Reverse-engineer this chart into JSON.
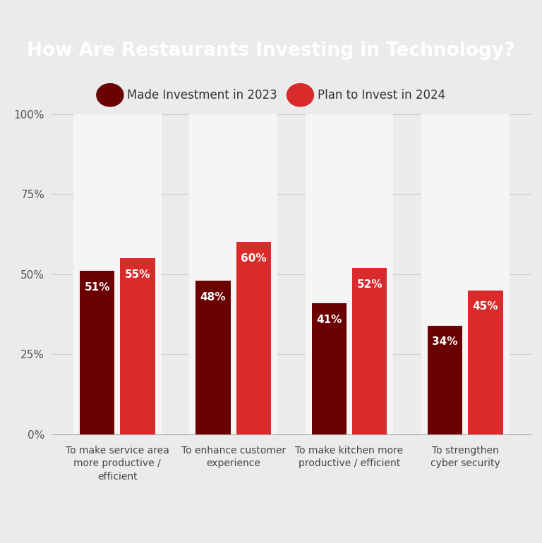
{
  "title": "How Are Restaurants Investing in Technology?",
  "title_bg_color": "#8a6a38",
  "title_text_color": "#ffffff",
  "red_strip_color": "#c0392b",
  "background_color": "#ebebeb",
  "plot_bg_color": "#ebebeb",
  "white_col_color": "#f5f5f5",
  "categories": [
    "To make service area\nmore productive /\nefficient",
    "To enhance customer\nexperience",
    "To make kitchen more\nproductive / efficient",
    "To strengthen\ncyber security"
  ],
  "series": [
    {
      "label": "Made Investment in 2023",
      "values": [
        51,
        48,
        41,
        34
      ],
      "color": "#6b0000"
    },
    {
      "label": "Plan to Invest in 2024",
      "values": [
        55,
        60,
        52,
        45
      ],
      "color": "#d92b2b"
    }
  ],
  "ylim": [
    0,
    100
  ],
  "yticks": [
    0,
    25,
    50,
    75,
    100
  ],
  "ytick_labels": [
    "0%",
    "25%",
    "50%",
    "75%",
    "100%"
  ],
  "bar_width": 0.3,
  "bar_gap": 0.05,
  "value_label_color": "#ffffff",
  "value_label_fontsize": 11,
  "legend_fontsize": 12,
  "axis_label_fontsize": 10,
  "ytick_fontsize": 11,
  "grid_color": "#cccccc"
}
